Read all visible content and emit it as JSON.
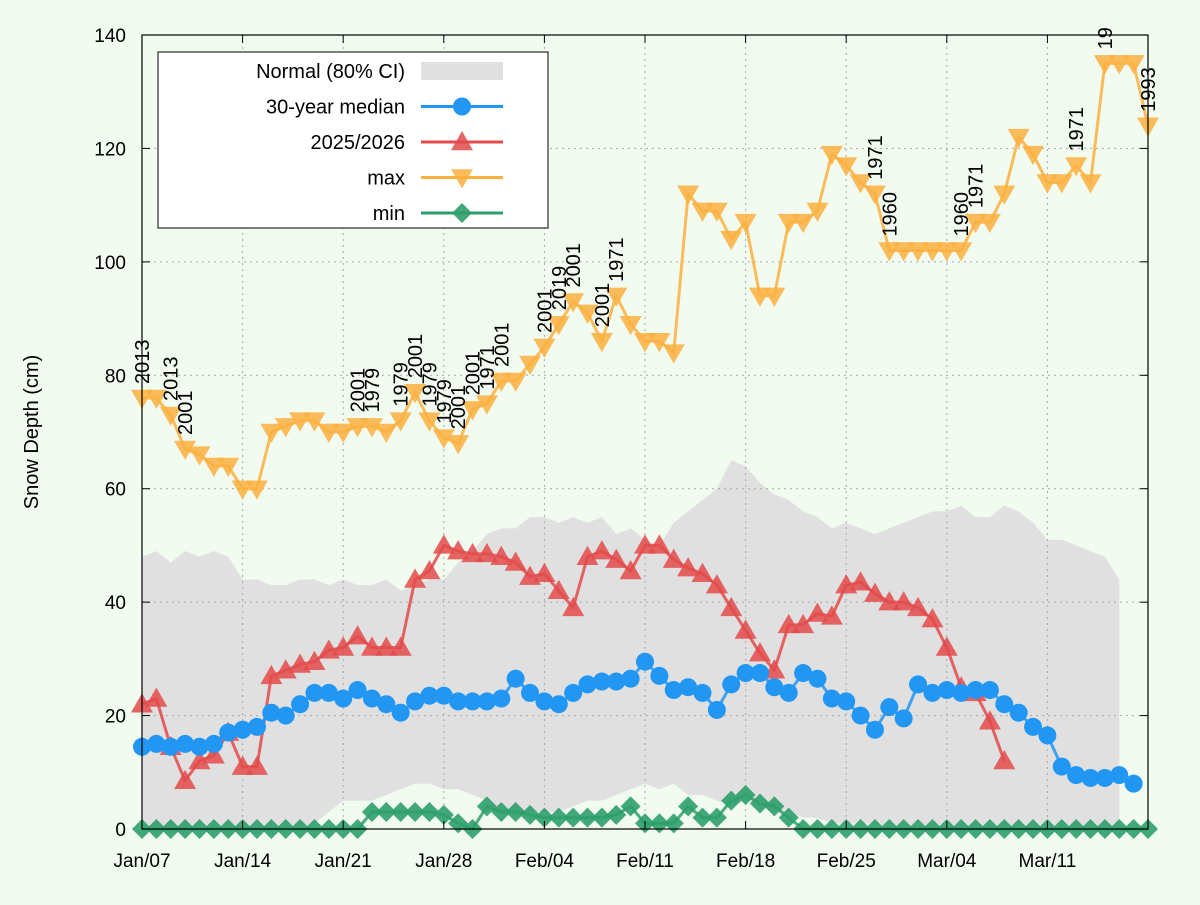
{
  "chart_data": {
    "type": "line",
    "title": "",
    "xlabel": "",
    "ylabel": "Snow Depth (cm)",
    "xlim": [
      "Jan/07",
      "Mar/17"
    ],
    "ylim": [
      0,
      140
    ],
    "yticks": [
      0,
      20,
      40,
      60,
      80,
      100,
      120,
      140
    ],
    "xticks": [
      {
        "day": 0,
        "label": "Jan/07"
      },
      {
        "day": 7,
        "label": "Jan/14"
      },
      {
        "day": 14,
        "label": "Jan/21"
      },
      {
        "day": 21,
        "label": "Jan/28"
      },
      {
        "day": 28,
        "label": "Feb/04"
      },
      {
        "day": 35,
        "label": "Feb/11"
      },
      {
        "day": 42,
        "label": "Feb/18"
      },
      {
        "day": 49,
        "label": "Feb/25"
      },
      {
        "day": 56,
        "label": "Mar/04"
      },
      {
        "day": 63,
        "label": "Mar/11"
      }
    ],
    "grid": true,
    "legend_position": "top-left",
    "band": {
      "name": "Normal (80% CI)",
      "color": "#e0e0e0",
      "upper": [
        48,
        49,
        47,
        49,
        48,
        49,
        48,
        44,
        44,
        43,
        43,
        44,
        44,
        43,
        44,
        43,
        43,
        44,
        42,
        43,
        44,
        44,
        47,
        49,
        52,
        53,
        53,
        55,
        55,
        54,
        55,
        54,
        55,
        52,
        53,
        51,
        50,
        54,
        56,
        58,
        60,
        65,
        64,
        61,
        59,
        58,
        56,
        55,
        53,
        54,
        53,
        52,
        53,
        54,
        55,
        56,
        56,
        57,
        55,
        55,
        57,
        56,
        54,
        51,
        51,
        50,
        49,
        48,
        44
      ],
      "lower": [
        0,
        0,
        0,
        0,
        0,
        0,
        0,
        0,
        0,
        0,
        0,
        0,
        1,
        3,
        5,
        5,
        5,
        6,
        7,
        8,
        8,
        7,
        7,
        6,
        5,
        3,
        3,
        3,
        3,
        3,
        4,
        5,
        5,
        6,
        7,
        8,
        7,
        8,
        6,
        6,
        5,
        4,
        5,
        4,
        3,
        3,
        2,
        2,
        1,
        1,
        1,
        1,
        0,
        0,
        0,
        0,
        0,
        0,
        0,
        0,
        0,
        0,
        0,
        0,
        0,
        0,
        0,
        0,
        0
      ]
    },
    "series": [
      {
        "name": "30-year median",
        "color": "#2196f3",
        "marker": "circle",
        "values": [
          14.5,
          15,
          14.5,
          15,
          14.5,
          15,
          17,
          17.5,
          18,
          20.5,
          20,
          22,
          24,
          24,
          23,
          24.5,
          23,
          22,
          20.5,
          22.5,
          23.5,
          23.5,
          22.5,
          22.5,
          22.5,
          23,
          26.5,
          24,
          22.5,
          22,
          24,
          25.5,
          26,
          26,
          26.5,
          29.5,
          27,
          24.5,
          25,
          24,
          21,
          25.5,
          27.5,
          27.5,
          25,
          24,
          27.5,
          26.5,
          23,
          22.5,
          20,
          17.5,
          21.5,
          19.5,
          25.5,
          24,
          24.5,
          24,
          24.5,
          24.5,
          22,
          20.5,
          18,
          16.5,
          11,
          9.5,
          9,
          9,
          9.5,
          8
        ]
      },
      {
        "name": "2025/2026",
        "color": "#e34a4a",
        "marker": "triangle-up",
        "values": [
          22,
          23,
          14.5,
          8.5,
          12,
          13,
          17,
          11,
          11,
          27,
          28,
          29,
          29.5,
          31.5,
          32,
          34,
          32,
          32,
          32,
          44,
          45.5,
          50,
          49,
          48.5,
          48.5,
          48,
          47,
          44.5,
          45,
          42,
          39,
          48,
          49,
          47.5,
          45.5,
          50,
          50,
          47.5,
          46,
          45,
          43,
          39,
          35,
          31,
          28,
          36,
          36,
          38,
          37.5,
          43,
          43.5,
          41.5,
          40,
          40,
          39,
          37,
          32,
          25,
          24,
          19,
          12
        ]
      },
      {
        "name": "max",
        "color": "#fbb040",
        "marker": "triangle-down",
        "values": [
          76,
          76,
          73,
          67,
          66,
          64,
          64,
          60,
          60,
          70,
          71,
          72,
          72,
          70,
          70,
          71,
          71,
          70,
          72,
          77,
          72,
          69,
          68,
          74,
          75,
          79,
          79,
          82,
          85,
          89,
          93,
          91,
          86,
          94,
          89,
          86,
          86,
          84,
          112,
          109,
          109,
          104,
          107,
          94,
          94,
          107,
          107,
          109,
          119,
          117,
          114,
          112,
          102,
          102,
          102,
          102,
          102,
          102,
          107,
          107,
          112,
          122,
          119,
          114,
          114,
          117,
          114,
          135,
          135,
          135,
          124
        ],
        "annotations": [
          {
            "i": 0,
            "text": "2013"
          },
          {
            "i": 2,
            "text": "2013"
          },
          {
            "i": 3,
            "text": "2001"
          },
          {
            "i": 15,
            "text": "2001"
          },
          {
            "i": 16,
            "text": "1979"
          },
          {
            "i": 18,
            "text": "1979"
          },
          {
            "i": 19,
            "text": "2001"
          },
          {
            "i": 20,
            "text": "1979"
          },
          {
            "i": 21,
            "text": "1979"
          },
          {
            "i": 22,
            "text": "2001"
          },
          {
            "i": 23,
            "text": "2001"
          },
          {
            "i": 24,
            "text": "1971"
          },
          {
            "i": 25,
            "text": "2001"
          },
          {
            "i": 28,
            "text": "2001"
          },
          {
            "i": 29,
            "text": "2019"
          },
          {
            "i": 30,
            "text": "2001"
          },
          {
            "i": 32,
            "text": "2001"
          },
          {
            "i": 33,
            "text": "1971"
          },
          {
            "i": 51,
            "text": "1971"
          },
          {
            "i": 52,
            "text": "1960"
          },
          {
            "i": 57,
            "text": "1960"
          },
          {
            "i": 58,
            "text": "1971"
          },
          {
            "i": 65,
            "text": "1971"
          },
          {
            "i": 67,
            "text": "19"
          },
          {
            "i": 70,
            "text": "1993"
          }
        ]
      },
      {
        "name": "min",
        "color": "#2e9e6b",
        "marker": "diamond",
        "values": [
          0,
          0,
          0,
          0,
          0,
          0,
          0,
          0,
          0,
          0,
          0,
          0,
          0,
          0,
          0,
          0,
          3,
          3,
          3,
          3,
          3,
          2.5,
          1,
          0,
          4,
          3,
          3,
          2.5,
          2,
          2,
          2,
          2,
          2,
          2.5,
          4,
          1,
          1,
          1,
          4,
          2,
          2,
          5,
          6,
          4.5,
          4,
          2,
          0,
          0,
          0,
          0,
          0,
          0,
          0,
          0,
          0,
          0,
          0,
          0,
          0,
          0,
          0,
          0,
          0,
          0,
          0,
          0,
          0,
          0,
          0,
          0,
          0
        ]
      }
    ]
  }
}
